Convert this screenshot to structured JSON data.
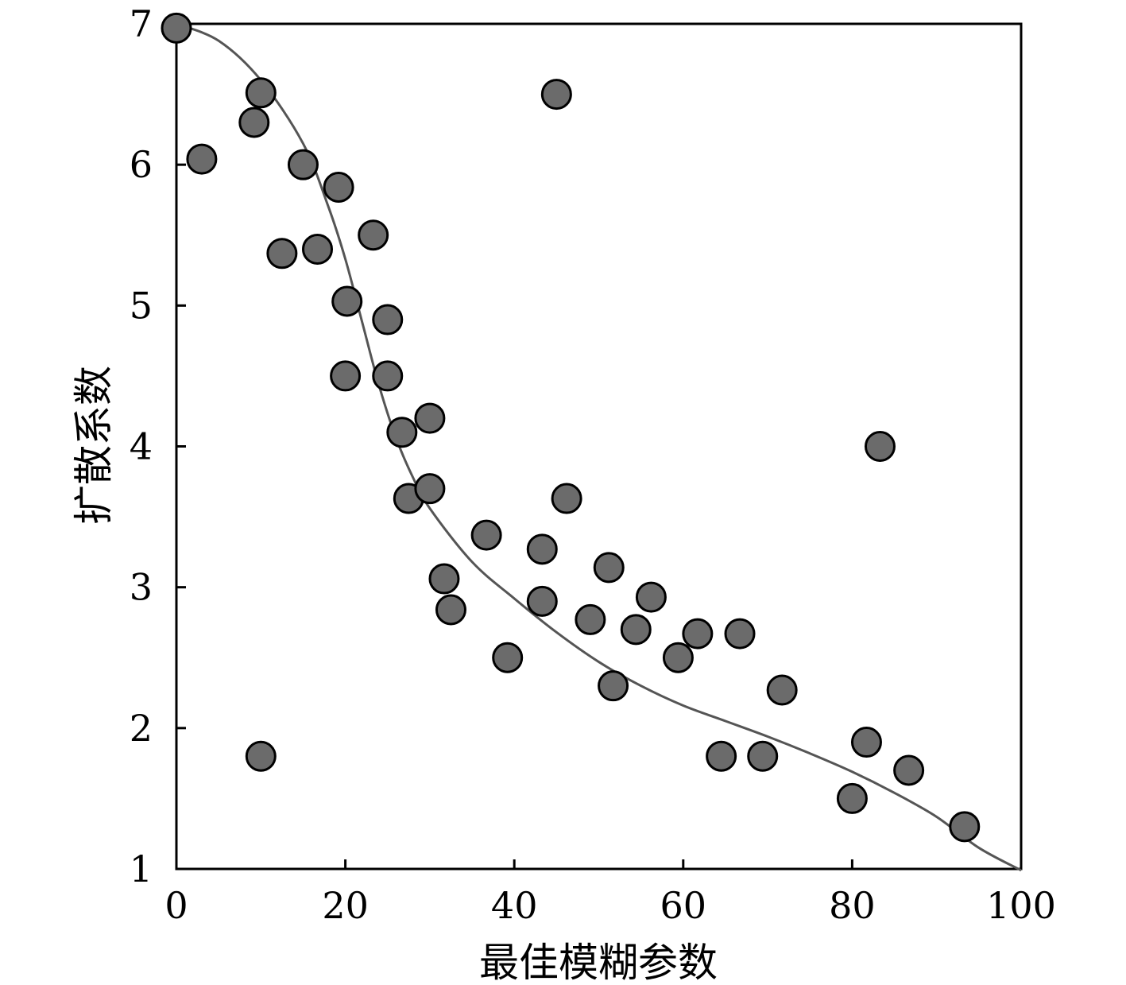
{
  "chart_data": {
    "type": "scatter",
    "xlabel": "最佳模糊参数",
    "ylabel": "扩散系数",
    "xlim": [
      0,
      100
    ],
    "ylim": [
      1,
      7
    ],
    "x_ticks": [
      0,
      20,
      40,
      60,
      80,
      100
    ],
    "y_ticks": [
      1,
      2,
      3,
      4,
      5,
      6,
      7
    ],
    "grid": false,
    "colors": {
      "point_fill": "#6b6b6b",
      "point_stroke": "#000000",
      "curve": "#555555"
    },
    "series": [
      {
        "values": [
          [
            0,
            6.97
          ],
          [
            3,
            6.04
          ],
          [
            9.2,
            6.3
          ],
          [
            10,
            6.51
          ],
          [
            10,
            1.8
          ],
          [
            12.5,
            5.37
          ],
          [
            15,
            6.0
          ],
          [
            16.7,
            5.4
          ],
          [
            19.2,
            5.84
          ],
          [
            20.2,
            5.03
          ],
          [
            20,
            4.5
          ],
          [
            23.3,
            5.5
          ],
          [
            25,
            4.9
          ],
          [
            25,
            4.5
          ],
          [
            26.7,
            4.1
          ],
          [
            27.5,
            3.63
          ],
          [
            30,
            4.2
          ],
          [
            30,
            3.7
          ],
          [
            31.7,
            3.06
          ],
          [
            32.5,
            2.84
          ],
          [
            36.7,
            3.37
          ],
          [
            39.2,
            2.5
          ],
          [
            43.3,
            3.27
          ],
          [
            43.3,
            2.9
          ],
          [
            45,
            6.5
          ],
          [
            46.2,
            3.63
          ],
          [
            49,
            2.77
          ],
          [
            51.2,
            3.14
          ],
          [
            51.7,
            2.3
          ],
          [
            54.4,
            2.7
          ],
          [
            56.2,
            2.93
          ],
          [
            59.4,
            2.5
          ],
          [
            61.7,
            2.67
          ],
          [
            64.5,
            1.8
          ],
          [
            66.7,
            2.67
          ],
          [
            69.4,
            1.8
          ],
          [
            71.7,
            2.27
          ],
          [
            80,
            1.5
          ],
          [
            81.7,
            1.9
          ],
          [
            83.3,
            4.0
          ],
          [
            86.7,
            1.7
          ],
          [
            93.3,
            1.3
          ]
        ]
      }
    ],
    "fit_curve": [
      [
        0,
        7.0
      ],
      [
        5,
        6.88
      ],
      [
        10,
        6.6
      ],
      [
        15,
        6.15
      ],
      [
        18,
        5.7
      ],
      [
        20,
        5.33
      ],
      [
        22,
        4.88
      ],
      [
        24,
        4.43
      ],
      [
        26,
        4.06
      ],
      [
        28,
        3.78
      ],
      [
        30,
        3.56
      ],
      [
        35,
        3.18
      ],
      [
        40,
        2.92
      ],
      [
        45,
        2.68
      ],
      [
        50,
        2.47
      ],
      [
        55,
        2.3
      ],
      [
        60,
        2.16
      ],
      [
        65,
        2.05
      ],
      [
        70,
        1.94
      ],
      [
        75,
        1.82
      ],
      [
        80,
        1.69
      ],
      [
        85,
        1.54
      ],
      [
        90,
        1.37
      ],
      [
        95,
        1.15
      ],
      [
        100,
        0.99
      ]
    ]
  }
}
